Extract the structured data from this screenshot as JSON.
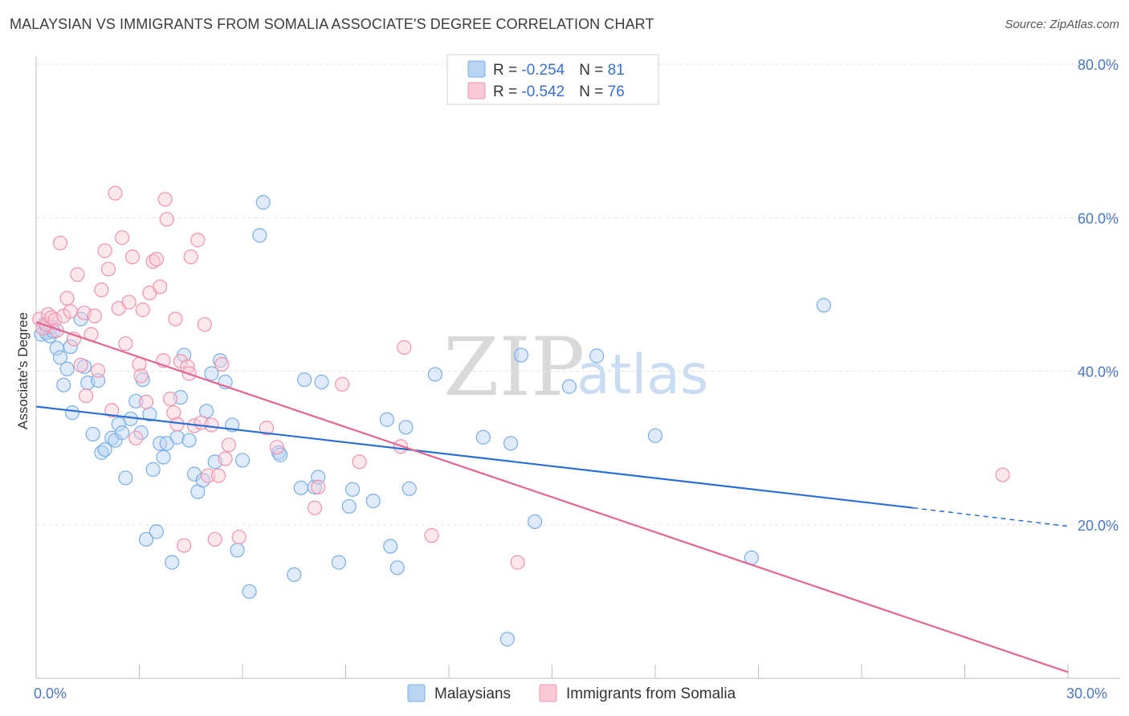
{
  "title": "MALAYSIAN VS IMMIGRANTS FROM SOMALIA ASSOCIATE'S DEGREE CORRELATION CHART",
  "source": "Source: ZipAtlas.com",
  "watermark": {
    "zip": "ZIP",
    "atlas": "atlas"
  },
  "chart_data": {
    "type": "scatter",
    "ylabel": "Associate's Degree",
    "xlim": [
      0,
      30
    ],
    "ylim": [
      0,
      80
    ],
    "x_tick_labels": [
      "0.0%",
      "30.0%"
    ],
    "y_ticks": [
      20,
      40,
      60,
      80
    ],
    "y_tick_labels": [
      "20.0%",
      "40.0%",
      "60.0%",
      "80.0%"
    ],
    "legend": {
      "rows": [
        {
          "r_label": "R = ",
          "r_value": "-0.254",
          "n_label": "N = ",
          "n_value": "81"
        },
        {
          "r_label": "R = ",
          "r_value": "-0.542",
          "n_label": "N = ",
          "n_value": "76"
        }
      ]
    },
    "series": [
      {
        "name": "Malaysians",
        "color": "#7aaee8",
        "fill": "#b9d3f3",
        "line_color": "#2b6fd0",
        "trend": {
          "x0": 0,
          "y0": 35.4,
          "x1": 25.5,
          "y1": 22.2,
          "dash_x1": 30,
          "dash_y1": 19.8
        },
        "points": [
          [
            0.15,
            44.8
          ],
          [
            0.25,
            46.2
          ],
          [
            0.3,
            45.0
          ],
          [
            0.4,
            44.6
          ],
          [
            0.45,
            45.8
          ],
          [
            0.5,
            45.2
          ],
          [
            0.6,
            43.0
          ],
          [
            0.7,
            41.8
          ],
          [
            0.8,
            38.2
          ],
          [
            0.9,
            40.3
          ],
          [
            1.0,
            43.2
          ],
          [
            1.05,
            34.6
          ],
          [
            1.3,
            46.8
          ],
          [
            1.4,
            40.6
          ],
          [
            1.5,
            38.5
          ],
          [
            1.65,
            31.8
          ],
          [
            1.8,
            38.8
          ],
          [
            1.9,
            29.4
          ],
          [
            2.0,
            29.8
          ],
          [
            2.2,
            31.3
          ],
          [
            2.3,
            31.0
          ],
          [
            2.4,
            33.1
          ],
          [
            2.5,
            32.0
          ],
          [
            2.6,
            26.1
          ],
          [
            2.75,
            33.8
          ],
          [
            2.9,
            36.1
          ],
          [
            3.05,
            32.0
          ],
          [
            3.1,
            38.9
          ],
          [
            3.2,
            18.1
          ],
          [
            3.3,
            34.4
          ],
          [
            3.4,
            27.2
          ],
          [
            3.5,
            19.1
          ],
          [
            3.6,
            30.6
          ],
          [
            3.7,
            28.8
          ],
          [
            3.8,
            30.6
          ],
          [
            3.95,
            15.1
          ],
          [
            4.1,
            31.4
          ],
          [
            4.2,
            36.6
          ],
          [
            4.3,
            42.1
          ],
          [
            4.45,
            31.0
          ],
          [
            4.6,
            26.6
          ],
          [
            4.7,
            24.3
          ],
          [
            4.85,
            25.8
          ],
          [
            4.95,
            34.8
          ],
          [
            5.1,
            39.7
          ],
          [
            5.2,
            28.2
          ],
          [
            5.35,
            41.4
          ],
          [
            5.5,
            38.6
          ],
          [
            5.7,
            33.0
          ],
          [
            5.85,
            16.7
          ],
          [
            6.0,
            28.4
          ],
          [
            6.2,
            11.3
          ],
          [
            6.5,
            57.7
          ],
          [
            6.6,
            62.0
          ],
          [
            7.05,
            29.4
          ],
          [
            7.1,
            29.1
          ],
          [
            7.5,
            13.5
          ],
          [
            7.7,
            24.8
          ],
          [
            7.8,
            38.9
          ],
          [
            8.1,
            24.9
          ],
          [
            8.2,
            26.2
          ],
          [
            8.3,
            38.6
          ],
          [
            8.8,
            15.1
          ],
          [
            9.1,
            22.4
          ],
          [
            9.2,
            24.6
          ],
          [
            9.8,
            23.1
          ],
          [
            10.2,
            33.7
          ],
          [
            10.3,
            17.2
          ],
          [
            10.5,
            14.4
          ],
          [
            10.75,
            32.7
          ],
          [
            10.85,
            24.7
          ],
          [
            11.6,
            39.6
          ],
          [
            13.0,
            31.4
          ],
          [
            13.7,
            5.1
          ],
          [
            13.8,
            30.6
          ],
          [
            14.1,
            42.1
          ],
          [
            14.5,
            20.4
          ],
          [
            15.5,
            38.0
          ],
          [
            16.3,
            42.0
          ],
          [
            18.0,
            31.6
          ],
          [
            20.8,
            15.7
          ],
          [
            22.9,
            48.6
          ]
        ]
      },
      {
        "name": "Immigrants from Somalia",
        "color": "#ef93ad",
        "fill": "#f9c9d7",
        "line_color": "#e26592",
        "trend": {
          "x0": 0,
          "y0": 46.4,
          "x1": 30,
          "y1": 0.8
        },
        "points": [
          [
            0.1,
            46.8
          ],
          [
            0.2,
            45.6
          ],
          [
            0.3,
            46.1
          ],
          [
            0.35,
            47.4
          ],
          [
            0.45,
            47.0
          ],
          [
            0.55,
            46.7
          ],
          [
            0.6,
            45.3
          ],
          [
            0.7,
            56.7
          ],
          [
            0.8,
            47.2
          ],
          [
            0.9,
            49.5
          ],
          [
            1.0,
            47.8
          ],
          [
            1.1,
            44.2
          ],
          [
            1.2,
            52.6
          ],
          [
            1.3,
            40.8
          ],
          [
            1.4,
            47.6
          ],
          [
            1.45,
            36.8
          ],
          [
            1.6,
            44.8
          ],
          [
            1.7,
            47.2
          ],
          [
            1.8,
            40.1
          ],
          [
            1.9,
            50.6
          ],
          [
            2.0,
            55.7
          ],
          [
            2.1,
            53.3
          ],
          [
            2.2,
            34.9
          ],
          [
            2.3,
            63.2
          ],
          [
            2.4,
            48.2
          ],
          [
            2.5,
            57.4
          ],
          [
            2.6,
            43.6
          ],
          [
            2.7,
            49.0
          ],
          [
            2.8,
            54.9
          ],
          [
            2.9,
            31.3
          ],
          [
            3.0,
            40.9
          ],
          [
            3.05,
            39.4
          ],
          [
            3.1,
            48.0
          ],
          [
            3.2,
            36.0
          ],
          [
            3.3,
            50.2
          ],
          [
            3.4,
            54.3
          ],
          [
            3.5,
            54.6
          ],
          [
            3.6,
            51.0
          ],
          [
            3.7,
            41.4
          ],
          [
            3.75,
            62.4
          ],
          [
            3.8,
            59.8
          ],
          [
            3.9,
            36.4
          ],
          [
            4.0,
            34.6
          ],
          [
            4.05,
            46.8
          ],
          [
            4.1,
            33.1
          ],
          [
            4.2,
            41.3
          ],
          [
            4.3,
            17.3
          ],
          [
            4.4,
            40.6
          ],
          [
            4.45,
            39.7
          ],
          [
            4.5,
            54.9
          ],
          [
            4.6,
            32.9
          ],
          [
            4.7,
            57.1
          ],
          [
            4.8,
            33.3
          ],
          [
            4.9,
            46.1
          ],
          [
            5.0,
            26.4
          ],
          [
            5.1,
            33.0
          ],
          [
            5.2,
            18.1
          ],
          [
            5.3,
            26.4
          ],
          [
            5.4,
            40.9
          ],
          [
            5.5,
            28.6
          ],
          [
            5.6,
            30.4
          ],
          [
            5.9,
            18.4
          ],
          [
            6.7,
            32.6
          ],
          [
            7.0,
            30.1
          ],
          [
            8.1,
            22.2
          ],
          [
            8.2,
            24.9
          ],
          [
            8.9,
            38.3
          ],
          [
            9.4,
            28.2
          ],
          [
            10.6,
            30.2
          ],
          [
            10.7,
            43.1
          ],
          [
            11.5,
            18.6
          ],
          [
            14.0,
            15.1
          ],
          [
            28.1,
            26.5
          ]
        ]
      }
    ]
  }
}
